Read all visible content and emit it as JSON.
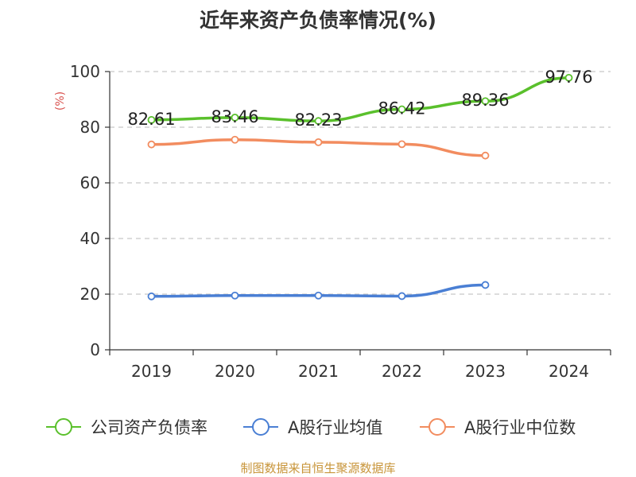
{
  "chart_data": {
    "type": "line",
    "title": "近年来资产负债率情况(%)",
    "ylabel": "(%)",
    "xlabel": "",
    "ylim": [
      0,
      100
    ],
    "yticks": [
      0,
      20,
      40,
      60,
      80,
      100
    ],
    "categories": [
      "2019",
      "2020",
      "2021",
      "2022",
      "2023",
      "2024"
    ],
    "grid": "horizontal-dashed",
    "legend_position": "bottom",
    "series": [
      {
        "name": "公司资产负债率",
        "color": "#5ac02c",
        "values": [
          82.61,
          83.46,
          82.23,
          86.42,
          89.36,
          97.76
        ],
        "show_labels": true
      },
      {
        "name": "A股行业均值",
        "color": "#4a7fd4",
        "values": [
          19.2,
          19.5,
          19.5,
          19.3,
          23.3,
          null
        ],
        "show_labels": false
      },
      {
        "name": "A股行业中位数",
        "color": "#f28c5f",
        "values": [
          73.8,
          75.5,
          74.6,
          73.9,
          69.8,
          null
        ],
        "show_labels": false
      }
    ]
  },
  "source_text": "制图数据来自恒生聚源数据库"
}
